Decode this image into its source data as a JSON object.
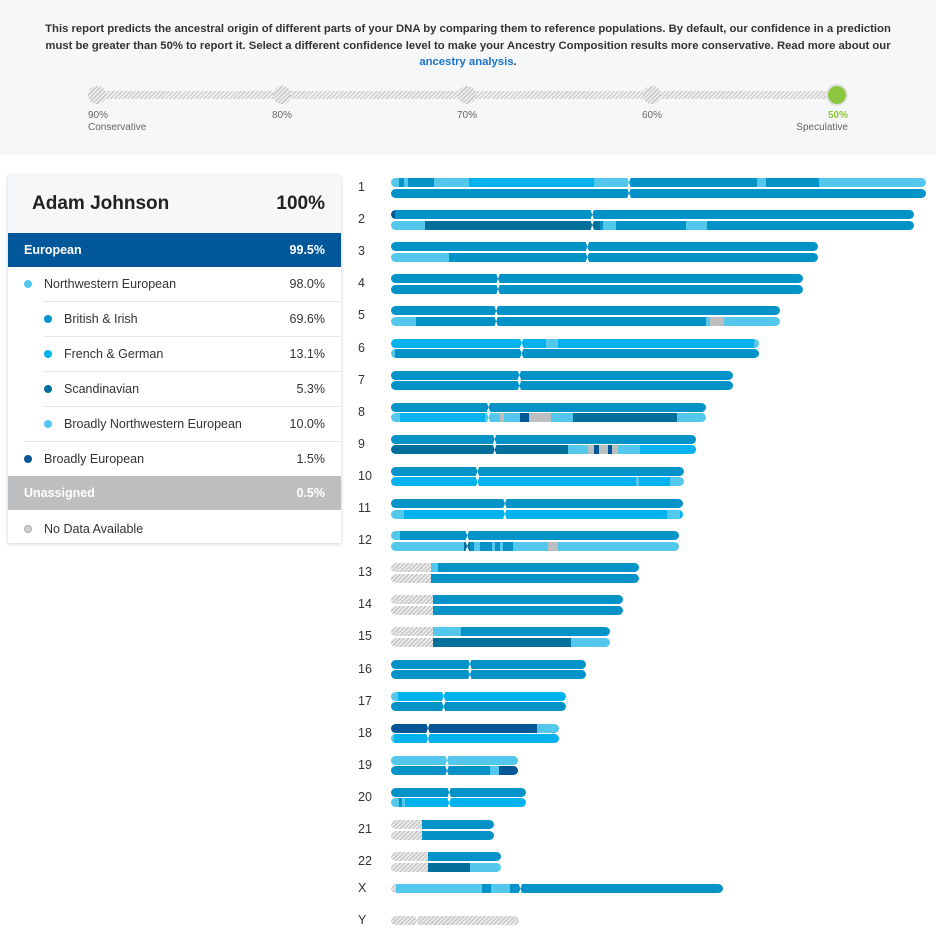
{
  "intro": {
    "text": "This report predicts the ancestral origin of different parts of your DNA by comparing them to reference populations. By default, our confidence in a prediction must be greater than 50% to report it. Select a different confidence level to make your Ancestry Composition results more conservative. Read more about our ",
    "link": "ancestry analysis",
    "suffix": "."
  },
  "confidence": {
    "stops": [
      {
        "pct": "90%",
        "caption": "Conservative",
        "active": false
      },
      {
        "pct": "80%",
        "caption": "",
        "active": false
      },
      {
        "pct": "70%",
        "caption": "",
        "active": false
      },
      {
        "pct": "60%",
        "caption": "",
        "active": false
      },
      {
        "pct": "50%",
        "caption": "Speculative",
        "active": true
      }
    ],
    "selected": "50%"
  },
  "colors": {
    "european": "#00579a",
    "nw_european": "#54c7ec",
    "british_irish": "#0493c9",
    "french_german": "#00b2ee",
    "scandinavian": "#03709b",
    "broadly_nw": "#54c7ec",
    "broadly_european": "#035797",
    "unassigned": "#bdbec0",
    "active_confidence": "#8cc63f"
  },
  "summary": {
    "name": "Adam Johnson",
    "total": "100%",
    "european": {
      "label": "European",
      "value": "99.5%"
    },
    "rows": [
      {
        "key": "nw_european",
        "label": "Northwestern European",
        "value": "98.0%",
        "level": 1
      },
      {
        "key": "british_irish",
        "label": "British & Irish",
        "value": "69.6%",
        "level": 2
      },
      {
        "key": "french_german",
        "label": "French & German",
        "value": "13.1%",
        "level": 2
      },
      {
        "key": "scandinavian",
        "label": "Scandinavian",
        "value": "5.3%",
        "level": 2
      },
      {
        "key": "broadly_nw",
        "label": "Broadly Northwestern European",
        "value": "10.0%",
        "level": 2
      },
      {
        "key": "broadly_european",
        "label": "Broadly European",
        "value": "1.5%",
        "level": 1
      }
    ],
    "unassigned": {
      "label": "Unassigned",
      "value": "0.5%"
    },
    "no_data": {
      "label": "No Data Available"
    }
  },
  "chart_data": {
    "type": "chromosome-painting",
    "legend_keys": [
      "british_irish",
      "french_german",
      "scandinavian",
      "broadly_nw",
      "broadly_european",
      "unassigned",
      "nodata"
    ],
    "chromosomes": [
      {
        "name": "1",
        "length": 1.0,
        "centromere": 0.445,
        "strands": [
          [
            [
              0,
              0.015,
              "broadly_nw"
            ],
            [
              0.015,
              0.025,
              "british_irish"
            ],
            [
              0.025,
              0.032,
              "broadly_nw"
            ],
            [
              0.032,
              0.08,
              "british_irish"
            ],
            [
              0.08,
              0.145,
              "broadly_nw"
            ],
            [
              0.145,
              0.38,
              "french_german"
            ],
            [
              0.38,
              0.445,
              "broadly_nw"
            ],
            [
              0.445,
              0.685,
              "british_irish"
            ],
            [
              0.685,
              0.7,
              "broadly_nw"
            ],
            [
              0.7,
              0.8,
              "british_irish"
            ],
            [
              0.8,
              1,
              "broadly_nw"
            ]
          ],
          [
            [
              0,
              1,
              "british_irish"
            ]
          ]
        ]
      },
      {
        "name": "2",
        "length": 0.977,
        "centromere": 0.385,
        "strands": [
          [
            [
              0,
              0.008,
              "broadly_european"
            ],
            [
              0.008,
              1,
              "british_irish"
            ]
          ],
          [
            [
              0,
              0.065,
              "broadly_nw"
            ],
            [
              0.065,
              0.4,
              "scandinavian"
            ],
            [
              0.4,
              0.405,
              "british_irish"
            ],
            [
              0.405,
              0.43,
              "broadly_nw"
            ],
            [
              0.43,
              0.565,
              "british_irish"
            ],
            [
              0.565,
              0.605,
              "broadly_nw"
            ],
            [
              0.605,
              1,
              "british_irish"
            ]
          ]
        ]
      },
      {
        "name": "3",
        "length": 0.798,
        "centromere": 0.46,
        "strands": [
          [
            [
              0,
              1,
              "british_irish"
            ]
          ],
          [
            [
              0,
              0.135,
              "broadly_nw"
            ],
            [
              0.135,
              1,
              "british_irish"
            ]
          ]
        ]
      },
      {
        "name": "4",
        "length": 0.77,
        "centromere": 0.26,
        "strands": [
          [
            [
              0,
              1,
              "british_irish"
            ]
          ],
          [
            [
              0,
              1,
              "british_irish"
            ]
          ]
        ]
      },
      {
        "name": "5",
        "length": 0.728,
        "centromere": 0.27,
        "strands": [
          [
            [
              0,
              1,
              "british_irish"
            ]
          ],
          [
            [
              0,
              0.065,
              "broadly_nw"
            ],
            [
              0.065,
              0.81,
              "british_irish"
            ],
            [
              0.81,
              0.82,
              "broadly_nw"
            ],
            [
              0.82,
              0.855,
              "unassigned"
            ],
            [
              0.855,
              1,
              "broadly_nw"
            ]
          ]
        ]
      },
      {
        "name": "6",
        "length": 0.688,
        "centromere": 0.355,
        "strands": [
          [
            [
              0,
              0.42,
              "french_german"
            ],
            [
              0.42,
              0.455,
              "broadly_nw"
            ],
            [
              0.455,
              0.985,
              "french_german"
            ],
            [
              0.985,
              1,
              "broadly_nw"
            ]
          ],
          [
            [
              0,
              0.01,
              "broadly_nw"
            ],
            [
              0.01,
              1,
              "british_irish"
            ]
          ]
        ]
      },
      {
        "name": "7",
        "length": 0.64,
        "centromere": 0.375,
        "strands": [
          [
            [
              0,
              1,
              "british_irish"
            ]
          ],
          [
            [
              0,
              1,
              "british_irish"
            ]
          ]
        ]
      },
      {
        "name": "8",
        "length": 0.588,
        "centromere": 0.31,
        "strands": [
          [
            [
              0,
              1,
              "british_irish"
            ]
          ],
          [
            [
              0,
              0.03,
              "broadly_nw"
            ],
            [
              0.03,
              0.3,
              "french_german"
            ],
            [
              0.3,
              0.345,
              "broadly_nw"
            ],
            [
              0.345,
              0.36,
              "unassigned"
            ],
            [
              0.36,
              0.41,
              "broadly_nw"
            ],
            [
              0.41,
              0.44,
              "broadly_european"
            ],
            [
              0.44,
              0.51,
              "unassigned"
            ],
            [
              0.51,
              0.58,
              "broadly_nw"
            ],
            [
              0.58,
              0.91,
              "scandinavian"
            ],
            [
              0.91,
              1,
              "broadly_nw"
            ]
          ]
        ]
      },
      {
        "name": "9",
        "length": 0.57,
        "centromere": 0.34,
        "strands": [
          [
            [
              0,
              1,
              "british_irish"
            ]
          ],
          [
            [
              0,
              0.58,
              "scandinavian"
            ],
            [
              0.58,
              0.645,
              "broadly_nw"
            ],
            [
              0.645,
              0.665,
              "unassigned"
            ],
            [
              0.665,
              0.682,
              "broadly_european"
            ],
            [
              0.682,
              0.71,
              "unassigned"
            ],
            [
              0.71,
              0.725,
              "broadly_european"
            ],
            [
              0.725,
              0.745,
              "unassigned"
            ],
            [
              0.745,
              0.815,
              "broadly_nw"
            ],
            [
              0.815,
              1,
              "french_german"
            ]
          ]
        ]
      },
      {
        "name": "10",
        "length": 0.548,
        "centromere": 0.295,
        "strands": [
          [
            [
              0,
              1,
              "british_irish"
            ]
          ],
          [
            [
              0,
              0.835,
              "french_german"
            ],
            [
              0.835,
              0.845,
              "broadly_nw"
            ],
            [
              0.845,
              0.95,
              "french_german"
            ],
            [
              0.95,
              1,
              "broadly_nw"
            ]
          ]
        ]
      },
      {
        "name": "11",
        "length": 0.546,
        "centromere": 0.39,
        "strands": [
          [
            [
              0,
              1,
              "british_irish"
            ]
          ],
          [
            [
              0,
              0.045,
              "broadly_nw"
            ],
            [
              0.045,
              0.945,
              "french_german"
            ],
            [
              0.945,
              0.99,
              "broadly_nw"
            ],
            [
              0.99,
              1,
              "french_german"
            ]
          ]
        ]
      },
      {
        "name": "12",
        "length": 0.538,
        "centromere": 0.265,
        "strands": [
          [
            [
              0,
              0.03,
              "broadly_nw"
            ],
            [
              0.03,
              1,
              "british_irish"
            ]
          ],
          [
            [
              0,
              0.255,
              "broadly_nw"
            ],
            [
              0.255,
              0.275,
              "scandinavian"
            ],
            [
              0.275,
              0.29,
              "british_irish"
            ],
            [
              0.29,
              0.31,
              "broadly_nw"
            ],
            [
              0.31,
              0.35,
              "british_irish"
            ],
            [
              0.35,
              0.36,
              "broadly_nw"
            ],
            [
              0.36,
              0.38,
              "british_irish"
            ],
            [
              0.38,
              0.39,
              "broadly_nw"
            ],
            [
              0.39,
              0.425,
              "british_irish"
            ],
            [
              0.425,
              0.545,
              "broadly_nw"
            ],
            [
              0.545,
              0.58,
              "unassigned"
            ],
            [
              0.58,
              1,
              "broadly_nw"
            ]
          ]
        ]
      },
      {
        "name": "13",
        "length": 0.464,
        "centromere": null,
        "strands": [
          [
            [
              0,
              0.16,
              "nodata"
            ],
            [
              0.16,
              0.19,
              "broadly_nw"
            ],
            [
              0.19,
              1,
              "british_irish"
            ]
          ],
          [
            [
              0,
              0.16,
              "nodata"
            ],
            [
              0.16,
              1,
              "british_irish"
            ]
          ]
        ]
      },
      {
        "name": "14",
        "length": 0.433,
        "centromere": null,
        "strands": [
          [
            [
              0,
              0.18,
              "nodata"
            ],
            [
              0.18,
              1,
              "british_irish"
            ]
          ],
          [
            [
              0,
              0.18,
              "nodata"
            ],
            [
              0.18,
              1,
              "british_irish"
            ]
          ]
        ]
      },
      {
        "name": "15",
        "length": 0.41,
        "centromere": null,
        "strands": [
          [
            [
              0,
              0.19,
              "nodata"
            ],
            [
              0.19,
              0.32,
              "broadly_nw"
            ],
            [
              0.32,
              1,
              "british_irish"
            ]
          ],
          [
            [
              0,
              0.19,
              "nodata"
            ],
            [
              0.19,
              0.82,
              "scandinavian"
            ],
            [
              0.82,
              1,
              "broadly_nw"
            ]
          ]
        ]
      },
      {
        "name": "16",
        "length": 0.364,
        "centromere": 0.405,
        "strands": [
          [
            [
              0,
              1,
              "british_irish"
            ]
          ],
          [
            [
              0,
              1,
              "british_irish"
            ]
          ]
        ]
      },
      {
        "name": "17",
        "length": 0.328,
        "centromere": 0.3,
        "strands": [
          [
            [
              0,
              0.04,
              "broadly_nw"
            ],
            [
              0.04,
              1,
              "french_german"
            ]
          ],
          [
            [
              0,
              1,
              "british_irish"
            ]
          ]
        ]
      },
      {
        "name": "18",
        "length": 0.314,
        "centromere": 0.22,
        "strands": [
          [
            [
              0,
              0.87,
              "broadly_european"
            ],
            [
              0.87,
              1,
              "broadly_nw"
            ]
          ],
          [
            [
              0,
              0.02,
              "broadly_nw"
            ],
            [
              0.02,
              1,
              "french_german"
            ]
          ]
        ]
      },
      {
        "name": "19",
        "length": 0.238,
        "centromere": 0.44,
        "strands": [
          [
            [
              0,
              1,
              "broadly_nw"
            ]
          ],
          [
            [
              0,
              0.78,
              "british_irish"
            ],
            [
              0.78,
              0.85,
              "broadly_nw"
            ],
            [
              0.85,
              1,
              "broadly_european"
            ]
          ]
        ]
      },
      {
        "name": "20",
        "length": 0.253,
        "centromere": 0.43,
        "strands": [
          [
            [
              0,
              1,
              "british_irish"
            ]
          ],
          [
            [
              0,
              0.06,
              "broadly_nw"
            ],
            [
              0.06,
              0.08,
              "british_irish"
            ],
            [
              0.08,
              0.1,
              "broadly_nw"
            ],
            [
              0.1,
              1,
              "french_german"
            ]
          ]
        ]
      },
      {
        "name": "21",
        "length": 0.193,
        "centromere": null,
        "strands": [
          [
            [
              0,
              0.3,
              "nodata"
            ],
            [
              0.3,
              1,
              "british_irish"
            ]
          ],
          [
            [
              0,
              0.3,
              "nodata"
            ],
            [
              0.3,
              1,
              "british_irish"
            ]
          ]
        ]
      },
      {
        "name": "22",
        "length": 0.206,
        "centromere": null,
        "strands": [
          [
            [
              0,
              0.34,
              "nodata"
            ],
            [
              0.34,
              1,
              "british_irish"
            ]
          ],
          [
            [
              0,
              0.34,
              "nodata"
            ],
            [
              0.34,
              0.72,
              "scandinavian"
            ],
            [
              0.72,
              1,
              "broadly_nw"
            ]
          ]
        ]
      },
      {
        "name": "X",
        "length": 0.62,
        "centromere": 0.39,
        "strands": [
          [
            [
              0,
              0.015,
              "nodata"
            ],
            [
              0.015,
              0.275,
              "broadly_nw"
            ],
            [
              0.275,
              0.3,
              "british_irish"
            ],
            [
              0.3,
              0.36,
              "broadly_nw"
            ],
            [
              0.36,
              1,
              "british_irish"
            ]
          ]
        ]
      },
      {
        "name": "Y",
        "length": 0.24,
        "centromere": 0.2,
        "strands": [
          [
            [
              0,
              1,
              "nodata"
            ]
          ]
        ]
      }
    ]
  }
}
